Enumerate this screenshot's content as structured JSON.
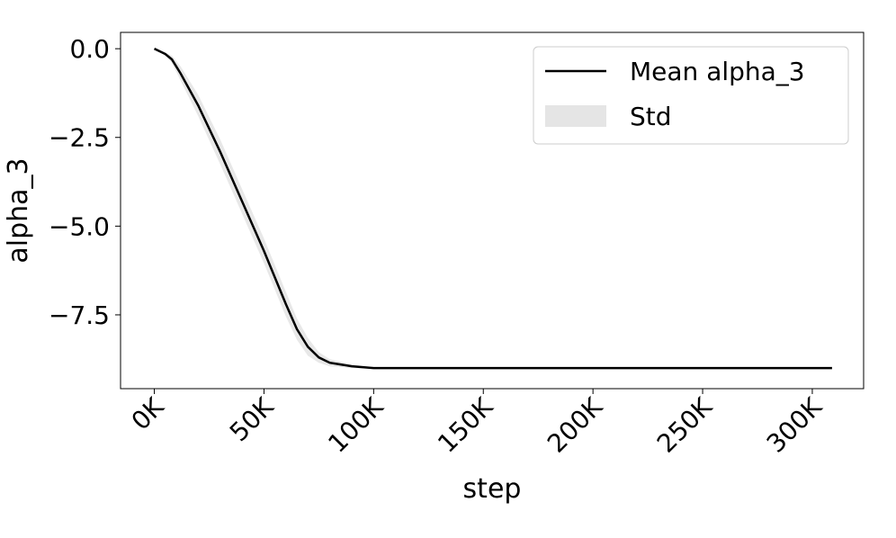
{
  "chart_data": {
    "type": "line",
    "xlabel": "step",
    "ylabel": "alpha_3",
    "x": [
      0,
      5000,
      8000,
      12000,
      20000,
      30000,
      40000,
      50000,
      60000,
      65000,
      70000,
      75000,
      80000,
      90000,
      100000,
      309000
    ],
    "series": [
      {
        "name": "Mean alpha_3",
        "color": "#000000",
        "values": [
          0,
          -0.15,
          -0.3,
          -0.7,
          -1.6,
          -2.9,
          -4.3,
          -5.7,
          -7.2,
          -7.9,
          -8.4,
          -8.7,
          -8.85,
          -8.95,
          -9.0,
          -9.0
        ]
      },
      {
        "name": "Std",
        "color": "#e5e5e5",
        "upper": [
          0,
          -0.1,
          -0.2,
          -0.5,
          -1.3,
          -2.55,
          -3.95,
          -5.35,
          -6.85,
          -7.6,
          -8.15,
          -8.55,
          -8.75,
          -8.9,
          -8.98,
          -9.0
        ],
        "lower": [
          0,
          -0.2,
          -0.4,
          -0.9,
          -1.9,
          -3.25,
          -4.65,
          -6.05,
          -7.55,
          -8.2,
          -8.65,
          -8.85,
          -8.95,
          -9.0,
          -9.02,
          -9.0
        ]
      }
    ],
    "xlim": [
      -15400,
      323400
    ],
    "ylim": [
      -9.58,
      0.46
    ],
    "xticks": [
      {
        "value": 0,
        "label": "0K"
      },
      {
        "value": 50000,
        "label": "50K"
      },
      {
        "value": 100000,
        "label": "100K"
      },
      {
        "value": 150000,
        "label": "150K"
      },
      {
        "value": 200000,
        "label": "200K"
      },
      {
        "value": 250000,
        "label": "250K"
      },
      {
        "value": 300000,
        "label": "300K"
      }
    ],
    "yticks": [
      {
        "value": 0,
        "label": "0.0"
      },
      {
        "value": -2.5,
        "label": "−2.5"
      },
      {
        "value": -5,
        "label": "−5.0"
      },
      {
        "value": -7.5,
        "label": "−7.5"
      }
    ],
    "legend": "upper right",
    "grid": false
  }
}
